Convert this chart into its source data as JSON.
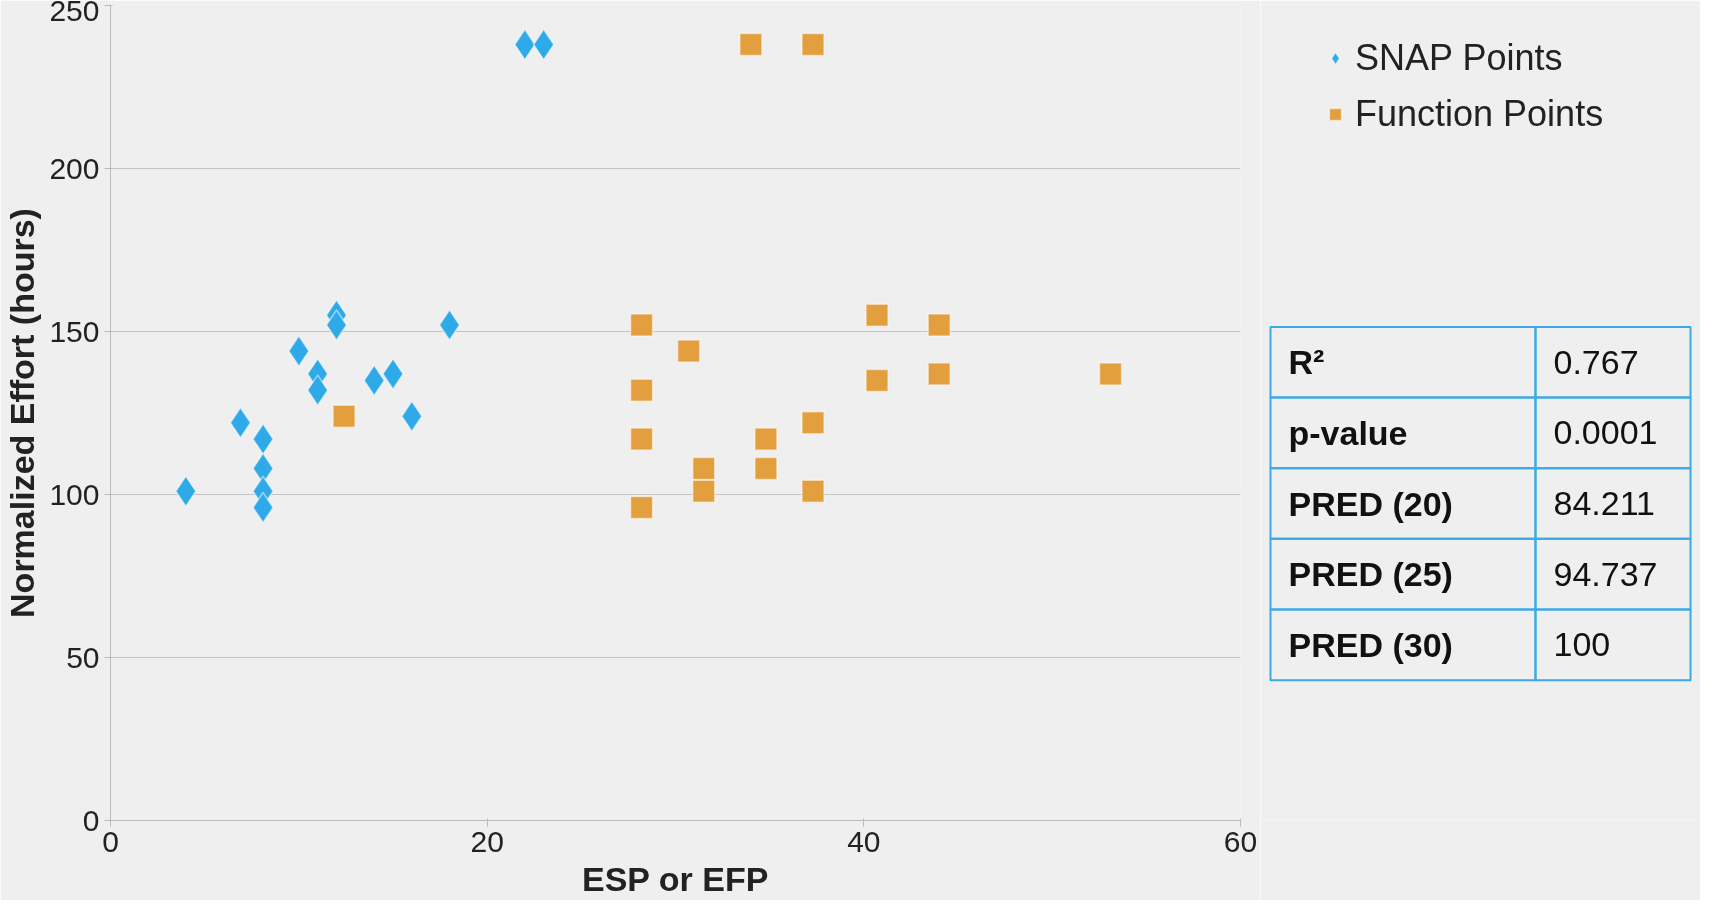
{
  "chart_data": {
    "type": "scatter",
    "xlabel": "ESP or EFP",
    "ylabel": "Normalized Effort (hours)",
    "xlim": [
      0,
      60
    ],
    "xticks": [
      0,
      20,
      40,
      60
    ],
    "ylim": [
      0,
      250
    ],
    "yticks": [
      0,
      50,
      100,
      150,
      200,
      250
    ],
    "grid": "y",
    "legend": "top right",
    "series": [
      {
        "name": "SNAP Points",
        "color": "#2eaae8",
        "marker": "diamond",
        "x": [
          4.0,
          6.9,
          8.1,
          8.1,
          8.1,
          8.1,
          10.0,
          11.0,
          11.0,
          12.0,
          12.0,
          14.0,
          15.0,
          16.0,
          18.0,
          22.0,
          23.0
        ],
        "values": [
          101,
          122,
          117,
          108,
          101,
          96,
          144,
          137,
          132,
          155,
          152,
          135,
          137,
          124,
          152,
          238,
          238
        ]
      },
      {
        "name": "Function Points",
        "color": "#e39e3e",
        "marker": "square",
        "x": [
          12.4,
          28.2,
          28.2,
          28.2,
          28.2,
          30.7,
          31.5,
          31.5,
          34.0,
          34.8,
          34.8,
          37.3,
          37.3,
          37.3,
          40.7,
          40.7,
          44.0,
          44.0,
          53.1
        ],
        "values": [
          124,
          152,
          132,
          117,
          96,
          144,
          108,
          101,
          238,
          117,
          108,
          238,
          122,
          101,
          155,
          135,
          152,
          137,
          137
        ]
      }
    ],
    "annotations": [
      "R²",
      "0.767",
      "p-value",
      "0.0001",
      "PRED (20)",
      "84.211",
      "PRED (25)",
      "94.737",
      "PRED (30)",
      "100"
    ]
  }
}
